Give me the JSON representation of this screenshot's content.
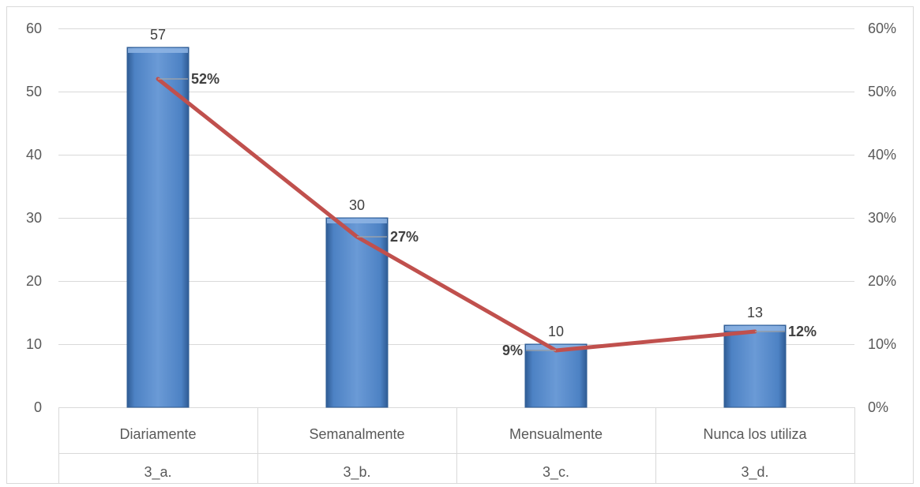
{
  "chart_data": {
    "type": "bar",
    "categories": [
      "Diariamente",
      "Semanalmente",
      "Mensualmente",
      "Nunca los utiliza"
    ],
    "category_codes": [
      "3_a.",
      "3_b.",
      "3_c.",
      "3_d."
    ],
    "values": [
      57,
      30,
      10,
      13
    ],
    "value_labels": [
      "57",
      "30",
      "10",
      "13"
    ],
    "line_values": [
      52,
      27,
      9,
      12
    ],
    "line_labels": [
      "52%",
      "27%",
      "9%",
      "12%"
    ],
    "ylim": [
      0,
      60
    ],
    "y2lim": [
      0,
      60
    ],
    "yticks": [
      "0",
      "10",
      "20",
      "30",
      "40",
      "50",
      "60"
    ],
    "y2ticks": [
      "0%",
      "10%",
      "20%",
      "30%",
      "40%",
      "50%",
      "60%"
    ],
    "grid": true,
    "colors": {
      "bar": "#4a7ebb",
      "bar_light": "#6a9ad6",
      "bar_edge": "#2f5c94",
      "line": "#c0504d",
      "grid": "#d9d9d9"
    }
  }
}
